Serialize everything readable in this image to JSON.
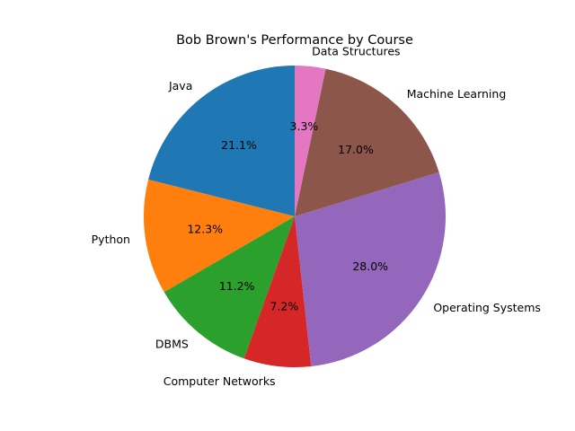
{
  "chart_data": {
    "type": "pie",
    "title": "Bob Brown's Performance by Course",
    "categories": [
      "Java",
      "Python",
      "DBMS",
      "Computer Networks",
      "Operating Systems",
      "Machine Learning",
      "Data Structures"
    ],
    "values": [
      21.1,
      12.3,
      11.2,
      7.2,
      28.0,
      17.0,
      3.3
    ],
    "percent_labels": [
      "21.1%",
      "12.3%",
      "11.2%",
      "7.2%",
      "28.0%",
      "17.0%",
      "3.3%"
    ],
    "colors": [
      "#1f77b4",
      "#ff7f0e",
      "#2ca02c",
      "#d62728",
      "#9467bd",
      "#8c564b",
      "#e377c2"
    ],
    "start_angle_deg": 90,
    "direction": "counterclockwise",
    "legend": "none"
  }
}
